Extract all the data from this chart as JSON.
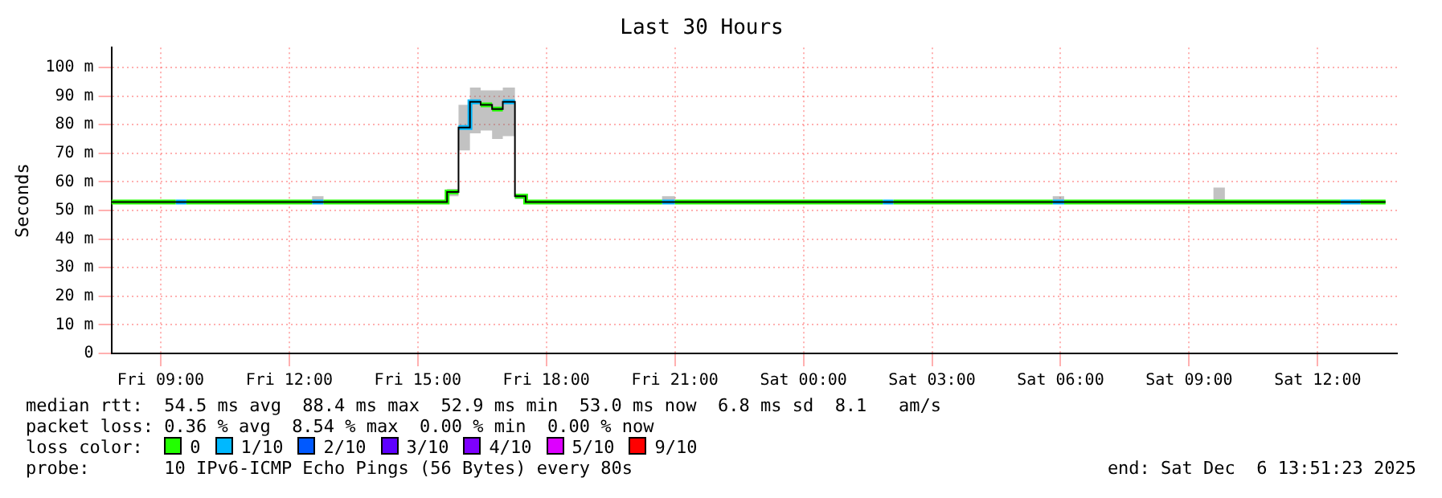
{
  "chart_data": {
    "type": "step",
    "title": "Last 30 Hours",
    "ylabel": "Seconds",
    "legend_title": "loss color:",
    "x": [
      "2025-12-05T07:51",
      "2025-12-05T09:21",
      "2025-12-05T09:36",
      "2025-12-05T12:32",
      "2025-12-05T12:48",
      "2025-12-05T15:41",
      "2025-12-05T15:57",
      "2025-12-05T16:13",
      "2025-12-05T16:28",
      "2025-12-05T16:44",
      "2025-12-05T16:59",
      "2025-12-05T17:16",
      "2025-12-05T17:31",
      "2025-12-05T20:42",
      "2025-12-05T21:00",
      "2025-12-06T01:51",
      "2025-12-06T02:06",
      "2025-12-06T05:49",
      "2025-12-06T06:05",
      "2025-12-06T09:34",
      "2025-12-06T09:50",
      "2025-12-06T12:32",
      "2025-12-06T13:00",
      "2025-12-06T13:35"
    ],
    "series": [
      {
        "color": "#000000",
        "values": [
          53,
          53,
          53,
          53,
          53,
          56.5,
          79,
          88,
          87,
          85.5,
          88,
          55,
          53,
          53,
          53,
          53,
          53,
          53,
          53,
          53,
          53,
          53,
          53,
          53
        ],
        "lower": [
          53,
          53,
          53,
          53,
          53,
          55,
          71,
          77,
          78,
          75,
          76,
          54,
          53,
          53,
          53,
          53,
          53,
          53,
          53,
          53,
          53,
          53,
          53,
          53
        ],
        "upper": [
          53.5,
          53.5,
          53.5,
          55,
          53.5,
          57.5,
          87,
          93,
          92,
          92,
          93,
          55.5,
          53.5,
          55,
          53.5,
          53.5,
          53.5,
          55,
          53.5,
          58,
          53.5,
          53.5,
          53.5,
          53.5
        ]
      },
      {
        "name": "0",
        "color": "#22ff00",
        "type": "line",
        "x": [
          "2025-12-05T07:51",
          "2025-12-05T09:21"
        ],
        "values": [
          53,
          53
        ]
      },
      {
        "name": "1/10",
        "color": "#00b8ff",
        "type": "line",
        "x": [
          "2025-12-05T09:21",
          "2025-12-05T09:36"
        ],
        "values": [
          53,
          53
        ]
      },
      {
        "name": "2/10",
        "color": "#0059ff",
        "values": [
          null,
          null,
          null,
          null,
          null,
          null,
          null,
          null,
          null,
          null,
          null,
          null,
          null,
          null,
          null,
          null,
          null,
          null,
          null,
          null,
          null,
          null,
          null,
          null
        ]
      },
      {
        "name": "3/10",
        "color": "#5e00ff",
        "values": [
          null,
          null,
          null,
          null,
          null,
          null,
          null,
          null,
          null,
          null,
          null,
          null,
          null,
          null,
          null,
          null,
          null,
          null,
          null,
          null,
          null,
          null,
          null,
          null
        ]
      },
      {
        "name": "4/10",
        "color": "#7e00ff",
        "values": [
          null,
          null,
          null,
          null,
          null,
          null,
          null,
          null,
          null,
          null,
          null,
          null,
          null,
          null,
          null,
          null,
          null,
          null,
          null,
          null,
          null,
          null,
          null,
          null
        ]
      },
      {
        "name": "5/10",
        "color": "#dd00ff",
        "values": [
          null,
          null,
          null,
          null,
          null,
          null,
          null,
          null,
          null,
          null,
          null,
          null,
          null,
          null,
          null,
          null,
          null,
          null,
          null,
          null,
          null,
          null,
          null,
          null
        ]
      },
      {
        "name": "9/10",
        "color": "#ff0000",
        "values": [
          null,
          null,
          null,
          null,
          null,
          null,
          null,
          null,
          null,
          null,
          null,
          null,
          null,
          null,
          null,
          null,
          null,
          null,
          null,
          null,
          null,
          null,
          null,
          null
        ]
      },
      {
        "color": "#22ff00",
        "type": "line",
        "x": [
          "2025-12-05T09:36",
          "2025-12-05T12:32"
        ],
        "values": [
          53,
          53
        ]
      },
      {
        "color": "#22ff00",
        "type": "line",
        "x": [
          "2025-12-05T12:48",
          "2025-12-05T15:41",
          "2025-12-05T15:41",
          "2025-12-05T15:57"
        ],
        "values": [
          53,
          53,
          56.5,
          56.5
        ]
      },
      {
        "color": "#22ff00",
        "type": "line",
        "x": [
          "2025-12-05T16:28",
          "2025-12-05T16:44"
        ],
        "values": [
          87,
          87
        ]
      },
      {
        "color": "#22ff00",
        "type": "line",
        "x": [
          "2025-12-05T16:44",
          "2025-12-05T16:59"
        ],
        "values": [
          85.5,
          85.5
        ]
      },
      {
        "color": "#22ff00",
        "type": "line",
        "x": [
          "2025-12-05T17:16",
          "2025-12-05T17:31",
          "2025-12-05T17:31",
          "2025-12-05T20:42"
        ],
        "values": [
          55,
          55,
          53,
          53
        ]
      },
      {
        "color": "#22ff00",
        "type": "line",
        "x": [
          "2025-12-05T21:00",
          "2025-12-06T01:51"
        ],
        "values": [
          53,
          53
        ]
      },
      {
        "color": "#22ff00",
        "type": "line",
        "x": [
          "2025-12-06T02:06",
          "2025-12-06T05:49"
        ],
        "values": [
          53,
          53
        ]
      },
      {
        "color": "#22ff00",
        "type": "line",
        "x": [
          "2025-12-06T06:05",
          "2025-12-06T12:32"
        ],
        "values": [
          53,
          53
        ]
      },
      {
        "color": "#22ff00",
        "type": "line",
        "x": [
          "2025-12-06T13:00",
          "2025-12-06T13:35"
        ],
        "values": [
          53,
          53
        ]
      },
      {
        "color": "#00b8ff",
        "type": "line",
        "x": [
          "2025-12-05T12:32",
          "2025-12-05T12:48"
        ],
        "values": [
          53,
          53
        ]
      },
      {
        "color": "#00b8ff",
        "type": "line",
        "x": [
          "2025-12-05T15:57",
          "2025-12-05T16:13",
          "2025-12-05T16:13",
          "2025-12-05T16:28"
        ],
        "values": [
          79,
          79,
          88,
          88
        ]
      },
      {
        "color": "#00b8ff",
        "type": "line",
        "x": [
          "2025-12-05T16:59",
          "2025-12-05T17:16"
        ],
        "values": [
          88,
          88
        ]
      },
      {
        "color": "#00b8ff",
        "type": "line",
        "x": [
          "2025-12-05T20:42",
          "2025-12-05T21:00"
        ],
        "values": [
          53,
          53
        ]
      },
      {
        "color": "#00b8ff",
        "type": "line",
        "x": [
          "2025-12-06T01:51",
          "2025-12-06T02:06"
        ],
        "values": [
          53,
          53
        ]
      },
      {
        "color": "#00b8ff",
        "type": "line",
        "x": [
          "2025-12-06T05:49",
          "2025-12-06T06:05"
        ],
        "values": [
          53,
          53
        ]
      },
      {
        "color": "#00b8ff",
        "type": "line",
        "x": [
          "2025-12-06T12:32",
          "2025-12-06T13:00"
        ],
        "values": [
          53,
          53
        ]
      }
    ],
    "xlim": [
      "2025-12-05T07:51",
      "2025-12-06T13:51"
    ],
    "xticks": [
      {
        "value": "2025-12-05T09:00",
        "label": "Fri 09:00"
      },
      {
        "value": "2025-12-05T12:00",
        "label": "Fri 12:00"
      },
      {
        "value": "2025-12-05T15:00",
        "label": "Fri 15:00"
      },
      {
        "value": "2025-12-05T18:00",
        "label": "Fri 18:00"
      },
      {
        "value": "2025-12-05T21:00",
        "label": "Fri 21:00"
      },
      {
        "value": "2025-12-06T00:00",
        "label": "Sat 00:00"
      },
      {
        "value": "2025-12-06T03:00",
        "label": "Sat 03:00"
      },
      {
        "value": "2025-12-06T06:00",
        "label": "Sat 06:00"
      },
      {
        "value": "2025-12-06T09:00",
        "label": "Sat 09:00"
      },
      {
        "value": "2025-12-06T12:00",
        "label": "Sat 12:00"
      }
    ],
    "ylim": [
      0,
      107
    ],
    "yticks": [
      0,
      {
        "value": 10,
        "label": "10 m"
      },
      {
        "value": 20,
        "label": "20 m"
      },
      {
        "value": 30,
        "label": "30 m"
      },
      {
        "value": 40,
        "label": "40 m"
      },
      {
        "value": 50,
        "label": "50 m"
      },
      {
        "value": 60,
        "label": "60 m"
      },
      {
        "value": 70,
        "label": "70 m"
      },
      {
        "value": 80,
        "label": "80 m"
      },
      {
        "value": 90,
        "label": "90 m"
      },
      {
        "value": 100,
        "label": "100 m"
      }
    ],
    "grid": true,
    "legend": "bottom",
    "annotations": [
      "median rtt:  54.5 ms avg  88.4 ms max  52.9 ms min  53.0 ms now  6.8 ms sd  8.1   am/s",
      "packet loss: 0.36 % avg  8.54 % max  0.00 % min  0.00 % now",
      "probe:       10 IPv6-ICMP Echo Pings (56 Bytes) every 80s",
      "end: Sat Dec  6 13:51:23 2025"
    ]
  }
}
